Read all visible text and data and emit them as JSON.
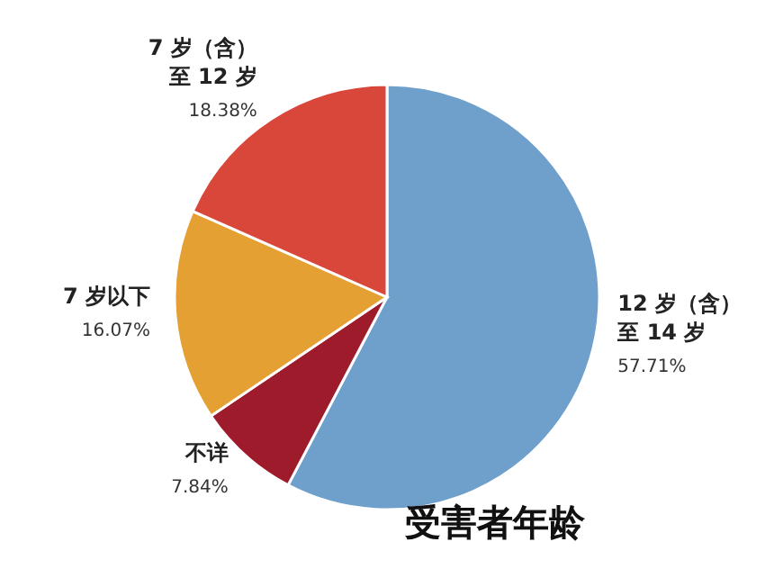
{
  "chart_data": {
    "type": "pie",
    "title": "受害者年龄",
    "categories": [
      "12 岁（含）至 14 岁",
      "不详",
      "7 岁以下",
      "7 岁（含）至 12 岁"
    ],
    "values": [
      57.71,
      7.84,
      16.07,
      18.38
    ],
    "value_labels": [
      "57.71%",
      "7.84%",
      "16.07%",
      "18.38%"
    ],
    "colors": [
      "#6f9fcb",
      "#9e1b2c",
      "#e5a033",
      "#d9473a"
    ]
  }
}
